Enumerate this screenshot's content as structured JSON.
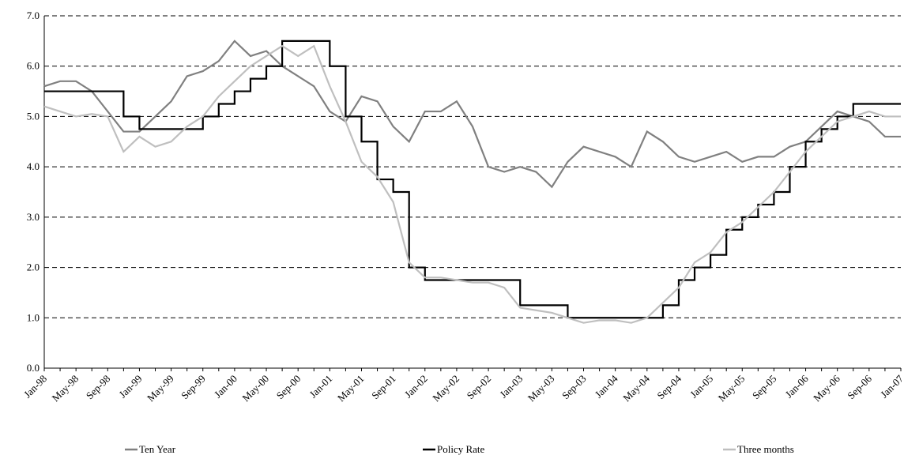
{
  "chart_data": {
    "type": "line",
    "categories": [
      "Jan-98",
      null,
      "May-98",
      null,
      "Sep-98",
      null,
      "Jan-99",
      null,
      "May-99",
      null,
      "Sep-99",
      null,
      "Jan-00",
      null,
      "May-00",
      null,
      "Sep-00",
      null,
      "Jan-01",
      null,
      "May-01",
      null,
      "Sep-01",
      null,
      "Jan-02",
      null,
      "May-02",
      null,
      "Sep-02",
      null,
      "Jan-03",
      null,
      "May-03",
      null,
      "Sep-03",
      null,
      "Jan-04",
      null,
      "May-04",
      null,
      "Sep-04",
      null,
      "Jan-05",
      null,
      "May-05",
      null,
      "Sep-05",
      null,
      "Jan-06",
      null,
      "May-06",
      null,
      "Sep-06",
      null,
      "Jan-07"
    ],
    "series": [
      {
        "name": "Ten Year",
        "color": "#808080",
        "step": false,
        "values": [
          5.6,
          5.7,
          5.7,
          5.5,
          5.1,
          4.7,
          4.7,
          5.0,
          5.3,
          5.8,
          5.9,
          6.1,
          6.5,
          6.2,
          6.3,
          6.0,
          5.8,
          5.6,
          5.1,
          4.9,
          5.4,
          5.3,
          4.8,
          4.5,
          5.1,
          5.1,
          5.3,
          4.8,
          4.0,
          3.9,
          4.0,
          3.9,
          3.6,
          4.1,
          4.4,
          4.3,
          4.2,
          4.0,
          4.7,
          4.5,
          4.2,
          4.1,
          4.2,
          4.3,
          4.1,
          4.2,
          4.2,
          4.4,
          4.5,
          4.8,
          5.1,
          5.0,
          4.9,
          4.6,
          4.6
        ]
      },
      {
        "name": "Policy Rate",
        "color": "#000000",
        "step": true,
        "values": [
          5.5,
          5.5,
          5.5,
          5.5,
          5.5,
          5.0,
          4.75,
          4.75,
          4.75,
          4.75,
          5.0,
          5.25,
          5.5,
          5.75,
          6.0,
          6.5,
          6.5,
          6.5,
          6.0,
          5.0,
          4.5,
          3.75,
          3.5,
          2.0,
          1.75,
          1.75,
          1.75,
          1.75,
          1.75,
          1.75,
          1.25,
          1.25,
          1.25,
          1.0,
          1.0,
          1.0,
          1.0,
          1.0,
          1.0,
          1.25,
          1.75,
          2.0,
          2.25,
          2.75,
          3.0,
          3.25,
          3.5,
          4.0,
          4.5,
          4.75,
          5.0,
          5.25,
          5.25,
          5.25,
          5.25
        ]
      },
      {
        "name": "Three months",
        "color": "#bfbfbf",
        "step": false,
        "values": [
          5.2,
          5.1,
          5.0,
          5.05,
          5.0,
          4.3,
          4.6,
          4.4,
          4.5,
          4.8,
          5.0,
          5.4,
          5.7,
          6.0,
          6.2,
          6.4,
          6.2,
          6.4,
          5.6,
          4.9,
          4.1,
          3.8,
          3.3,
          2.1,
          1.8,
          1.8,
          1.75,
          1.7,
          1.7,
          1.6,
          1.2,
          1.15,
          1.1,
          1.0,
          0.9,
          0.95,
          0.95,
          0.9,
          1.0,
          1.3,
          1.6,
          2.1,
          2.3,
          2.7,
          2.9,
          3.2,
          3.5,
          3.9,
          4.3,
          4.6,
          4.9,
          5.0,
          5.1,
          5.0,
          5.0
        ]
      }
    ],
    "ylim": [
      0,
      7
    ],
    "yticks": [
      {
        "value": 0,
        "label": "0.0"
      },
      {
        "value": 1,
        "label": "1.0"
      },
      {
        "value": 2,
        "label": "2.0"
      },
      {
        "value": 3,
        "label": "3.0"
      },
      {
        "value": 4,
        "label": "4.0"
      },
      {
        "value": 5,
        "label": "5.0"
      },
      {
        "value": 6,
        "label": "6.0"
      },
      {
        "value": 7,
        "label": "7.0"
      }
    ],
    "grid": true,
    "legend": "bottom"
  }
}
